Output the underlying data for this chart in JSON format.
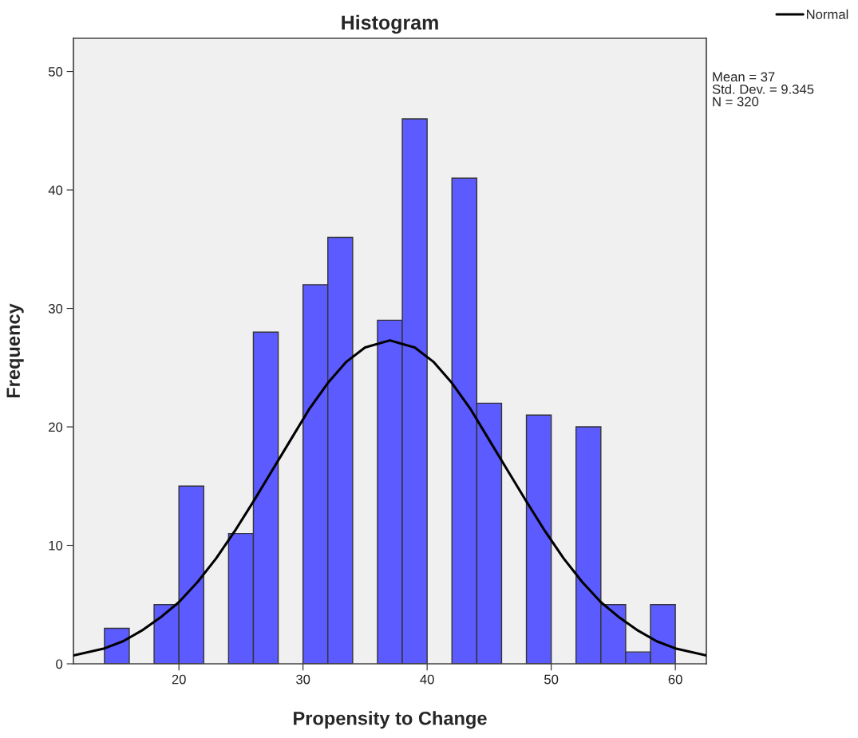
{
  "chart_data": {
    "type": "histogram",
    "title": "Histogram",
    "xlabel": "Propensity to Change",
    "ylabel": "Frequency",
    "bins": [
      14,
      16,
      18,
      20,
      22,
      24,
      26,
      28,
      30,
      32,
      34,
      36,
      38,
      40,
      42,
      44,
      46,
      48,
      50,
      52,
      54,
      56,
      58,
      60
    ],
    "series": [
      {
        "color": "#5b5bff",
        "values": [
          3,
          0,
          5,
          15,
          0,
          11,
          28,
          0,
          32,
          36,
          0,
          29,
          46,
          0,
          41,
          22,
          0,
          21,
          0,
          20,
          5,
          1,
          5
        ]
      },
      {
        "type": "line",
        "name": "Normal",
        "color": "#000000",
        "x": [
          11.5,
          14,
          15.5,
          17,
          18.5,
          20,
          21.5,
          23,
          24.5,
          26,
          27.5,
          29,
          30.5,
          32,
          33.5,
          35,
          37,
          39,
          40.5,
          42,
          43.5,
          45,
          46.5,
          48,
          49.5,
          51,
          52.5,
          54,
          55.5,
          57,
          58.5,
          60,
          62.5
        ],
        "values": [
          0.7,
          1.3,
          1.9,
          2.8,
          3.9,
          5.2,
          6.9,
          8.9,
          11.2,
          13.7,
          16.3,
          18.9,
          21.5,
          23.7,
          25.5,
          26.7,
          27.3,
          26.7,
          25.5,
          23.7,
          21.5,
          18.9,
          16.3,
          13.7,
          11.2,
          8.9,
          6.9,
          5.2,
          3.9,
          2.8,
          1.9,
          1.3,
          0.7
        ]
      }
    ],
    "xlim": [
      11.5,
      62.5
    ],
    "ylim": [
      0,
      52.8
    ],
    "xticks": [
      20,
      30,
      40,
      50,
      60
    ],
    "yticks": [
      0,
      10,
      20,
      30,
      40,
      50
    ],
    "annotations": [
      "Mean = 37\nStd. Dev. = 9.345\nN = 320"
    ],
    "grid": false,
    "legend": "top right",
    "marker": "none",
    "line_style": "solid"
  }
}
